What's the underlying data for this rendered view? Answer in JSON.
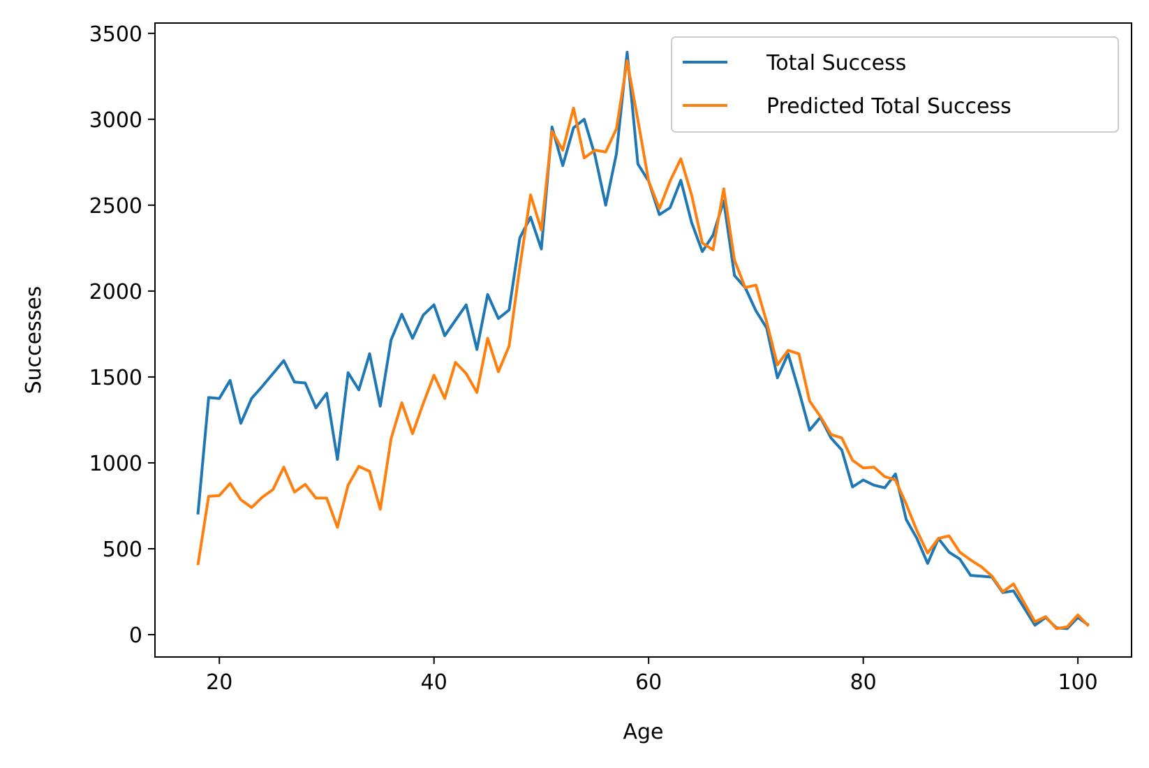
{
  "chart_data": {
    "type": "line",
    "title": "",
    "xlabel": "Age",
    "ylabel": "Successes",
    "xlim": [
      14,
      105
    ],
    "ylim": [
      -130,
      3560
    ],
    "xticks": [
      20,
      40,
      60,
      80,
      100
    ],
    "yticks": [
      0,
      500,
      1000,
      1500,
      2000,
      2500,
      3000,
      3500
    ],
    "grid": false,
    "legend_position": "top-right",
    "x": [
      18,
      19,
      20,
      21,
      22,
      23,
      24,
      25,
      26,
      27,
      28,
      29,
      30,
      31,
      32,
      33,
      34,
      35,
      36,
      37,
      38,
      39,
      40,
      41,
      42,
      43,
      44,
      45,
      46,
      47,
      48,
      49,
      50,
      51,
      52,
      53,
      54,
      55,
      56,
      57,
      58,
      59,
      60,
      61,
      62,
      63,
      64,
      65,
      66,
      67,
      68,
      69,
      70,
      71,
      72,
      73,
      74,
      75,
      76,
      77,
      78,
      79,
      80,
      81,
      82,
      83,
      84,
      85,
      86,
      87,
      88,
      89,
      90,
      91,
      92,
      93,
      94,
      95,
      96,
      97,
      98,
      99,
      100,
      101
    ],
    "series": [
      {
        "name": "Total Success",
        "color": "#1f77b4",
        "values": [
          700,
          1380,
          1375,
          1480,
          1230,
          1375,
          1445,
          1520,
          1595,
          1470,
          1465,
          1320,
          1405,
          1020,
          1525,
          1425,
          1635,
          1330,
          1715,
          1865,
          1725,
          1860,
          1920,
          1740,
          1830,
          1920,
          1660,
          1980,
          1840,
          1890,
          2310,
          2430,
          2245,
          2955,
          2730,
          2950,
          3000,
          2790,
          2500,
          2800,
          3390,
          2740,
          2640,
          2445,
          2485,
          2645,
          2400,
          2230,
          2325,
          2525,
          2090,
          2020,
          1885,
          1785,
          1495,
          1635,
          1420,
          1190,
          1265,
          1145,
          1075,
          860,
          900,
          870,
          855,
          935,
          670,
          560,
          415,
          560,
          480,
          440,
          345,
          340,
          335,
          245,
          255,
          155,
          55,
          100,
          40,
          35,
          100,
          55
        ]
      },
      {
        "name": "Predicted Total Success",
        "color": "#ff7f0e",
        "values": [
          405,
          805,
          810,
          880,
          785,
          740,
          800,
          845,
          975,
          830,
          875,
          795,
          795,
          625,
          870,
          980,
          950,
          730,
          1140,
          1350,
          1170,
          1345,
          1510,
          1375,
          1585,
          1520,
          1410,
          1725,
          1530,
          1680,
          2140,
          2560,
          2355,
          2930,
          2820,
          3065,
          2775,
          2820,
          2810,
          2945,
          3340,
          2995,
          2640,
          2480,
          2640,
          2770,
          2560,
          2280,
          2240,
          2595,
          2180,
          2020,
          2035,
          1820,
          1570,
          1655,
          1635,
          1360,
          1270,
          1165,
          1145,
          1015,
          970,
          975,
          920,
          900,
          760,
          605,
          475,
          560,
          575,
          480,
          435,
          395,
          340,
          250,
          295,
          185,
          75,
          105,
          35,
          45,
          115,
          50
        ]
      }
    ]
  }
}
